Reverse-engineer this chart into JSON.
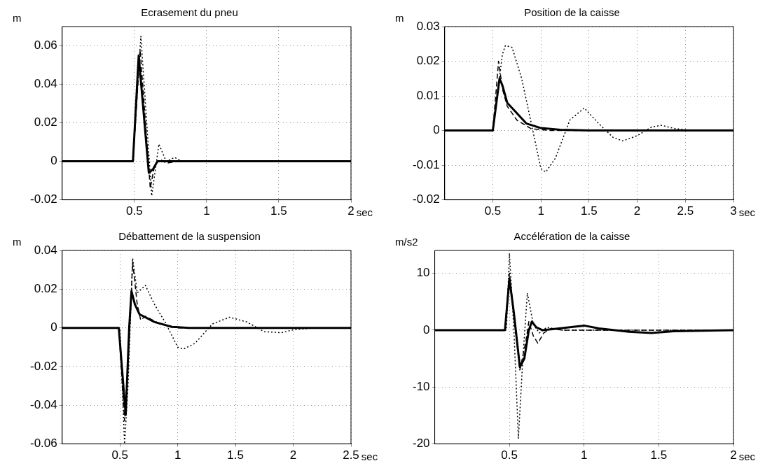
{
  "chart_data": [
    {
      "type": "line",
      "title": "Ecrasement du pneu",
      "ylabel": "m",
      "xlabel": "sec",
      "xlim": [
        0,
        2
      ],
      "xticks": [
        0.5,
        1,
        1.5,
        2
      ],
      "ylim": [
        -0.02,
        0.07
      ],
      "yticks": [
        -0.02,
        0,
        0.02,
        0.04,
        0.06
      ],
      "grid": true,
      "series": [
        {
          "color": "#000000",
          "line_style": "solid",
          "x": [
            0,
            0.49,
            0.53,
            0.6,
            0.63,
            0.66,
            0.7,
            2
          ],
          "values": [
            0,
            0,
            0.055,
            -0.006,
            -0.004,
            0,
            0,
            0
          ]
        },
        {
          "color": "#000000",
          "line_style": "dashed",
          "x": [
            0,
            0.49,
            0.54,
            0.61,
            0.64,
            0.68,
            0.72,
            0.8,
            2
          ],
          "values": [
            0,
            0,
            0.058,
            -0.014,
            -0.002,
            0.001,
            -0.001,
            0,
            0
          ]
        },
        {
          "color": "#000000",
          "line_style": "dotted",
          "x": [
            0,
            0.49,
            0.545,
            0.62,
            0.67,
            0.72,
            0.78,
            0.83,
            2
          ],
          "values": [
            0,
            0,
            0.065,
            -0.018,
            0.009,
            0,
            0.002,
            0,
            0
          ]
        }
      ]
    },
    {
      "type": "line",
      "title": "Position de la caisse",
      "ylabel": "m",
      "xlabel": "sec",
      "xlim": [
        0,
        3
      ],
      "xticks": [
        0.5,
        1,
        1.5,
        2,
        2.5,
        3
      ],
      "ylim": [
        -0.02,
        0.03
      ],
      "yticks": [
        -0.02,
        -0.01,
        0,
        0.01,
        0.02,
        0.03
      ],
      "grid": true,
      "series": [
        {
          "color": "#000000",
          "line_style": "solid",
          "x": [
            0,
            0.5,
            0.57,
            0.6,
            0.65,
            0.75,
            0.85,
            1,
            1.2,
            1.5,
            3
          ],
          "values": [
            0,
            0,
            0.015,
            0.013,
            0.008,
            0.005,
            0.002,
            0.0007,
            0.0002,
            0,
            0
          ]
        },
        {
          "color": "#000000",
          "line_style": "dashed",
          "x": [
            0,
            0.5,
            0.56,
            0.6,
            0.65,
            0.75,
            0.9,
            1.1,
            3
          ],
          "values": [
            0,
            0,
            0.02,
            0.012,
            0.007,
            0.003,
            0.0005,
            0,
            0
          ]
        },
        {
          "color": "#000000",
          "line_style": "dotted",
          "x": [
            0,
            0.5,
            0.6,
            0.63,
            0.7,
            0.8,
            0.9,
            1,
            1.05,
            1.15,
            1.3,
            1.45,
            1.6,
            1.75,
            1.85,
            2,
            2.15,
            2.25,
            2.4,
            2.6,
            3
          ],
          "values": [
            0,
            0,
            0.022,
            0.0245,
            0.024,
            0.015,
            0.002,
            -0.011,
            -0.012,
            -0.008,
            0.003,
            0.0065,
            0.002,
            -0.002,
            -0.003,
            -0.0015,
            0.001,
            0.0015,
            0.0005,
            0,
            0
          ]
        }
      ]
    },
    {
      "type": "line",
      "title": "Débattement de la suspension",
      "ylabel": "m",
      "xlabel": "sec",
      "xlim": [
        0,
        2.5
      ],
      "xticks": [
        0.5,
        1,
        1.5,
        2,
        2.5
      ],
      "ylim": [
        -0.06,
        0.04
      ],
      "yticks": [
        -0.06,
        -0.04,
        -0.02,
        0,
        0.02,
        0.04
      ],
      "grid": true,
      "series": [
        {
          "color": "#000000",
          "line_style": "solid",
          "x": [
            0,
            0.49,
            0.53,
            0.55,
            0.58,
            0.6,
            0.63,
            0.67,
            0.8,
            0.95,
            1.1,
            2.5
          ],
          "values": [
            0,
            0,
            -0.03,
            -0.045,
            0,
            0.019,
            0.012,
            0.007,
            0.003,
            0.0005,
            0,
            0
          ]
        },
        {
          "color": "#000000",
          "line_style": "dashed",
          "x": [
            0,
            0.49,
            0.54,
            0.57,
            0.61,
            0.65,
            0.68,
            0.72,
            0.85,
            1,
            2.5
          ],
          "values": [
            0,
            0,
            -0.048,
            -0.02,
            0.034,
            0.012,
            0.004,
            0.006,
            0.002,
            0,
            0
          ]
        },
        {
          "color": "#000000",
          "line_style": "dotted",
          "x": [
            0,
            0.5,
            0.54,
            0.57,
            0.61,
            0.65,
            0.72,
            0.8,
            0.9,
            1,
            1.05,
            1.15,
            1.3,
            1.45,
            1.6,
            1.75,
            1.9,
            2,
            2.2,
            2.5
          ],
          "values": [
            0,
            0,
            -0.06,
            -0.03,
            0.036,
            0.018,
            0.022,
            0.012,
            0.002,
            -0.01,
            -0.011,
            -0.008,
            0.002,
            0.0055,
            0.003,
            -0.002,
            -0.0025,
            -0.001,
            0,
            0
          ]
        }
      ]
    },
    {
      "type": "line",
      "title": "Accélération de la caisse",
      "ylabel": "m/s2",
      "xlabel": "sec",
      "xlim": [
        0,
        2
      ],
      "xticks": [
        0.5,
        1,
        1.5,
        2
      ],
      "ylim": [
        -20,
        14
      ],
      "yticks": [
        -20,
        -10,
        0,
        10
      ],
      "grid": true,
      "series": [
        {
          "color": "#000000",
          "line_style": "solid",
          "x": [
            0,
            0.47,
            0.5,
            0.53,
            0.57,
            0.6,
            0.63,
            0.65,
            0.68,
            0.72,
            0.8,
            1,
            1.1,
            1.3,
            1.45,
            1.6,
            2
          ],
          "values": [
            0,
            0,
            9,
            3,
            -6.5,
            -5,
            0,
            1.5,
            0.5,
            0,
            0.2,
            0.8,
            0.3,
            -0.3,
            -0.5,
            -0.2,
            0
          ]
        },
        {
          "color": "#000000",
          "line_style": "dashed",
          "x": [
            0,
            0.47,
            0.5,
            0.54,
            0.57,
            0.61,
            0.63,
            0.66,
            0.69,
            0.73,
            0.78,
            0.85,
            2
          ],
          "values": [
            0,
            0,
            10,
            0,
            -7,
            -2,
            1.5,
            -1,
            -2.3,
            -0.5,
            0.3,
            0,
            0
          ]
        },
        {
          "color": "#000000",
          "line_style": "dotted",
          "x": [
            0,
            0.48,
            0.5,
            0.53,
            0.56,
            0.59,
            0.62,
            0.66,
            0.7,
            0.75,
            0.85,
            2
          ],
          "values": [
            0,
            0,
            13.5,
            0,
            -19,
            -5,
            6.5,
            1,
            -0.5,
            0.5,
            0,
            0
          ]
        }
      ]
    }
  ]
}
